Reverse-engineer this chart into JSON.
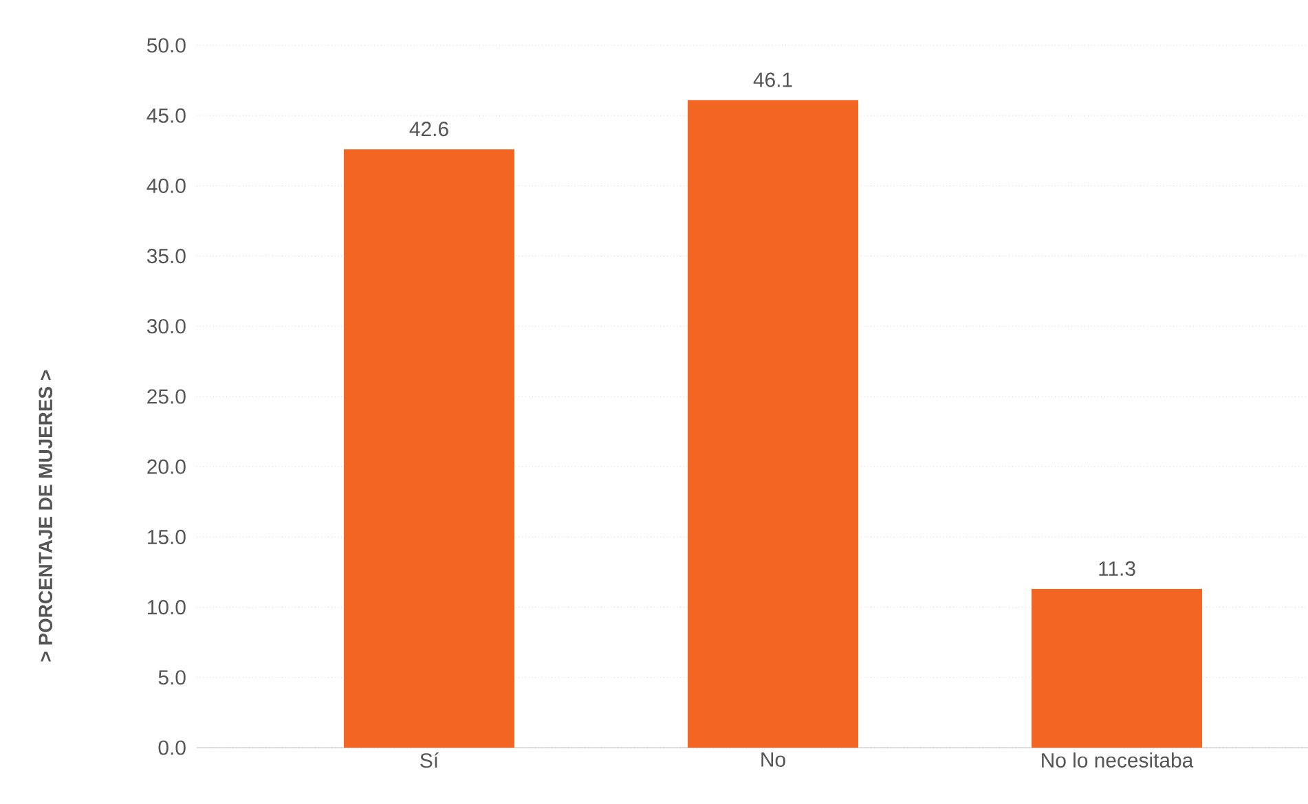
{
  "chart_data": {
    "type": "bar",
    "ylabel": "> PORCENTAJE DE MUJERES >",
    "categories": [
      "Sí",
      "No",
      "No lo necesitaba"
    ],
    "values": [
      42.6,
      46.1,
      11.3
    ],
    "color": "#f26522",
    "ylim": [
      0,
      50
    ],
    "yticks": [
      {
        "value": 0,
        "label": "0.0"
      },
      {
        "value": 5,
        "label": "5.0"
      },
      {
        "value": 10,
        "label": "10.0"
      },
      {
        "value": 15,
        "label": "15.0"
      },
      {
        "value": 20,
        "label": "20.0"
      },
      {
        "value": 25,
        "label": "25.0"
      },
      {
        "value": 30,
        "label": "30.0"
      },
      {
        "value": 35,
        "label": "35.0"
      },
      {
        "value": 40,
        "label": "40.0"
      },
      {
        "value": 45,
        "label": "45.0"
      },
      {
        "value": 50,
        "label": "50.0"
      }
    ],
    "grid": "y",
    "data_labels": true
  }
}
